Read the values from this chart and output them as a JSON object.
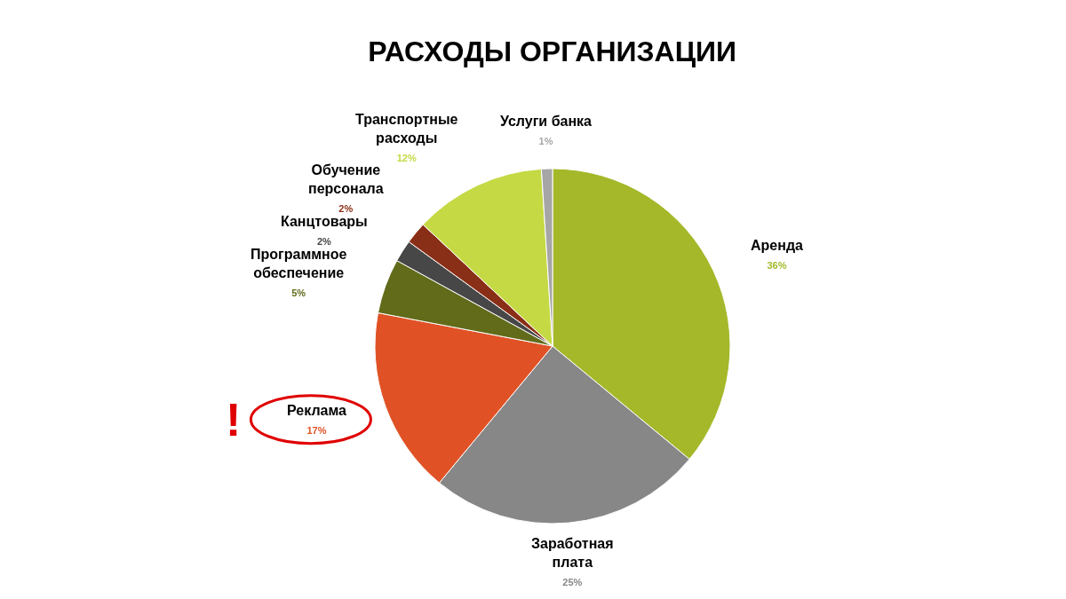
{
  "chart_data": {
    "type": "pie",
    "title": "РАСХОДЫ ОРГАНИЗАЦИИ",
    "categories": [
      "Аренда",
      "Заработная плата",
      "Реклама",
      "Программное обеспечение",
      "Канцтовары",
      "Обучение персонала",
      "Транспортные расходы",
      "Услуги банка"
    ],
    "values": [
      36,
      25,
      17,
      5,
      2,
      2,
      12,
      1
    ],
    "colors": [
      "#a5b82a",
      "#878787",
      "#e05226",
      "#616b1a",
      "#474747",
      "#8a2f17",
      "#c5d944",
      "#a6a6a6"
    ],
    "value_labels": [
      "36%",
      "25%",
      "17%",
      "5%",
      "2%",
      "2%",
      "12%",
      "1%"
    ],
    "annotations": [
      {
        "text": "!",
        "x": "Реклама"
      }
    ],
    "legend": false
  }
}
